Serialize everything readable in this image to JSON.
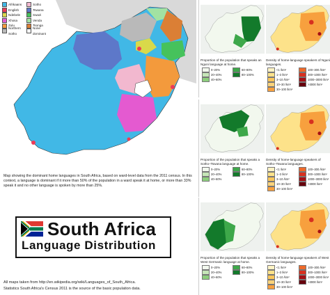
{
  "main_map": {
    "legend": [
      {
        "label": "Afrikaans",
        "color": "#41b8e6"
      },
      {
        "label": "Sotho",
        "color": "#f2b8cf"
      },
      {
        "label": "English",
        "color": "#ec3b57"
      },
      {
        "label": "Tswana",
        "color": "#5d78c9"
      },
      {
        "label": "Ndebele",
        "color": "#d9d94a"
      },
      {
        "label": "Swazi",
        "color": "#46c25c"
      },
      {
        "label": "Xhosa",
        "color": "#e45ad0"
      },
      {
        "label": "Venda",
        "color": "#a2e2a2"
      },
      {
        "label": "Zulu",
        "color": "#f39a3c"
      },
      {
        "label": "Tsonga",
        "color": "#db7f35"
      },
      {
        "label": "Northern Sotho",
        "color": "#b9b9b9"
      },
      {
        "label": "None dominant",
        "color": "#f5f5f5"
      }
    ],
    "caption": "Map showing the dominant home languages in South Africa, based on ward-level data from the 2011 census. In this context, a language is dominant if it more than 50% of the population in a ward speak it at home, or more than 33% speak it and no other language is spoken by more than 25%."
  },
  "title": {
    "line1": "South Africa",
    "line2": "Language  Distribution"
  },
  "source": {
    "line1": "All maps taken from http://en.wikipedia.org/wiki/Languages_of_South_Africa.",
    "line2": "Statistics South Africa's Census 2011 is the source of the basic population data."
  },
  "panels": [
    {
      "prop_text": "Proportion of the population that speaks an Nguni language at home.",
      "dens_text": "Density of home-language speakers of Nguni languages.",
      "prop_color": "#1f7a2e",
      "prop_legend": [
        "0–20%",
        "60–80%",
        "20–40%",
        "80–100%",
        "40–60%"
      ],
      "dens_legend": [
        "<1 /km²",
        "100–300 /km²",
        "1–3 /km²",
        "300–1000 /km²",
        "3–10 /km²",
        "1000–3000 /km²",
        "10–30 /km²",
        ">3000 /km²",
        "30–100 /km²"
      ]
    },
    {
      "prop_text": "Proportion of the population that speaks a Sotho–Tswana language at home.",
      "dens_text": "Density of home-language speakers of Sotho–Tswana languages.",
      "prop_color": "#1f7a2e",
      "prop_legend": [
        "0–20%",
        "60–80%",
        "20–40%",
        "80–100%",
        "40–60%"
      ],
      "dens_legend": [
        "<1 /km²",
        "100–300 /km²",
        "1–3 /km²",
        "300–1000 /km²",
        "3–10 /km²",
        "1000–3000 /km²",
        "10–30 /km²",
        ">3000 /km²",
        "30–100 /km²"
      ]
    },
    {
      "prop_text": "Proportion of the population that speaks a West Germanic language at home.",
      "dens_text": "Density of home-language speakers of West Germanic languages.",
      "prop_color": "#1f7a2e",
      "prop_legend": [
        "0–20%",
        "60–80%",
        "20–40%",
        "80–100%",
        "40–60%"
      ],
      "dens_legend": [
        "<1 /km²",
        "100–300 /km²",
        "1–3 /km²",
        "300–1000 /km²",
        "3–10 /km²",
        "1000–3000 /km²",
        "10–30 /km²",
        ">3000 /km²",
        "30–100 /km²"
      ]
    }
  ],
  "colors": {
    "prop_scale": [
      "#f2f8ee",
      "#c6e6b8",
      "#8dce7d",
      "#3ea84a",
      "#137a2b"
    ],
    "dens_scale": [
      "#fff3c4",
      "#fde28a",
      "#fbc65a",
      "#f7a03e",
      "#ee6a2b",
      "#d7301f",
      "#a50f15",
      "#67000d",
      "#fad27a"
    ]
  }
}
